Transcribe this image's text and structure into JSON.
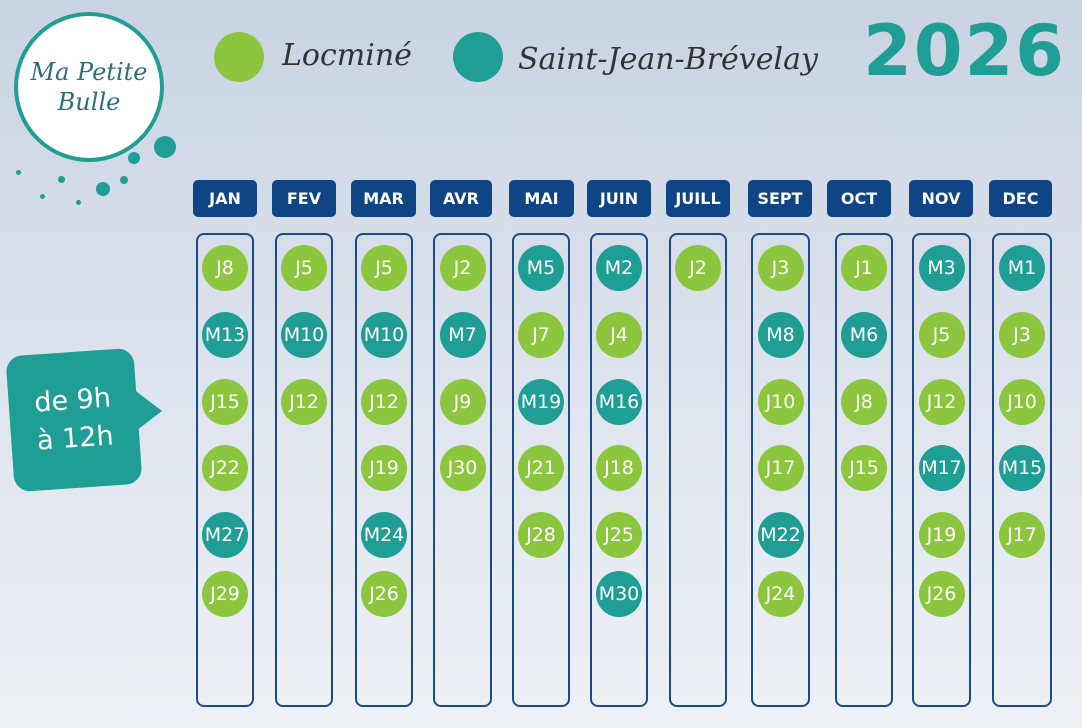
{
  "logo": {
    "line1": "Ma Petite",
    "line2": "Bulle"
  },
  "legend": [
    {
      "label": "Locminé",
      "color": "#8cc63f"
    },
    {
      "label": "Saint-Jean-Brévelay",
      "color": "#1e9e95"
    }
  ],
  "year": "2026",
  "hours": {
    "line1": "de 9h",
    "line2": "à 12h"
  },
  "colors": {
    "locmine": "#8cc63f",
    "saint_jean": "#1e9e95",
    "header": "#0f4585"
  },
  "months": [
    {
      "name": "JAN",
      "days": [
        "J8",
        "M13",
        "J15",
        "J22",
        "M27",
        "J29"
      ]
    },
    {
      "name": "FEV",
      "days": [
        "J5",
        "M10",
        "J12"
      ]
    },
    {
      "name": "MAR",
      "days": [
        "J5",
        "M10",
        "J12",
        "J19",
        "M24",
        "J26"
      ]
    },
    {
      "name": "AVR",
      "days": [
        "J2",
        "M7",
        "J9",
        "J30"
      ]
    },
    {
      "name": "MAI",
      "days": [
        "M5",
        "J7",
        "M19",
        "J21",
        "J28"
      ]
    },
    {
      "name": "JUIN",
      "days": [
        "M2",
        "J4",
        "M16",
        "J18",
        "J25",
        "M30"
      ]
    },
    {
      "name": "JUILL",
      "days": [
        "J2"
      ]
    },
    {
      "name": "SEPT",
      "days": [
        "J3",
        "M8",
        "J10",
        "J17",
        "M22",
        "J24"
      ]
    },
    {
      "name": "OCT",
      "days": [
        "J1",
        "M6",
        "J8",
        "J15"
      ]
    },
    {
      "name": "NOV",
      "days": [
        "M3",
        "J5",
        "J12",
        "M17",
        "J19",
        "J26"
      ]
    },
    {
      "name": "DEC",
      "days": [
        "M1",
        "J3",
        "J10",
        "M15",
        "J17"
      ]
    }
  ]
}
